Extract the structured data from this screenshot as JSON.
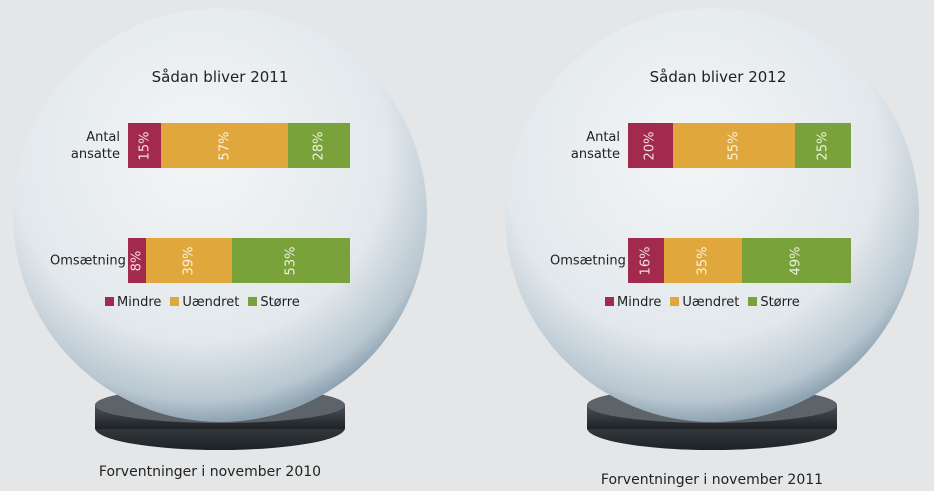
{
  "chart_data": [
    {
      "type": "bar",
      "orientation": "horizontal",
      "stacked": true,
      "title": "Sådan bliver 2011",
      "categories": [
        "Antal ansatte",
        "Omsætning"
      ],
      "series": [
        {
          "name": "Mindre",
          "color": "#a32a4f",
          "values": [
            15,
            8
          ],
          "value_labels": [
            "15%",
            "8%"
          ]
        },
        {
          "name": "Uændret",
          "color": "#dfa73c",
          "values": [
            57,
            39
          ],
          "value_labels": [
            "57%",
            "39%"
          ]
        },
        {
          "name": "Større",
          "color": "#7aa23b",
          "values": [
            28,
            53
          ],
          "value_labels": [
            "28%",
            "53%"
          ]
        }
      ],
      "caption": "Forventninger i november 2010"
    },
    {
      "type": "bar",
      "orientation": "horizontal",
      "stacked": true,
      "title": "Sådan bliver 2012",
      "categories": [
        "Antal ansatte",
        "Omsætning"
      ],
      "series": [
        {
          "name": "Mindre",
          "color": "#a32a4f",
          "values": [
            20,
            16
          ],
          "value_labels": [
            "20%",
            "16%"
          ]
        },
        {
          "name": "Uændret",
          "color": "#dfa73c",
          "values": [
            55,
            35
          ],
          "value_labels": [
            "55%",
            "35%"
          ]
        },
        {
          "name": "Større",
          "color": "#7aa23b",
          "values": [
            25,
            49
          ],
          "value_labels": [
            "25%",
            "49%"
          ]
        }
      ],
      "caption": "Forventninger i november 2011"
    }
  ]
}
